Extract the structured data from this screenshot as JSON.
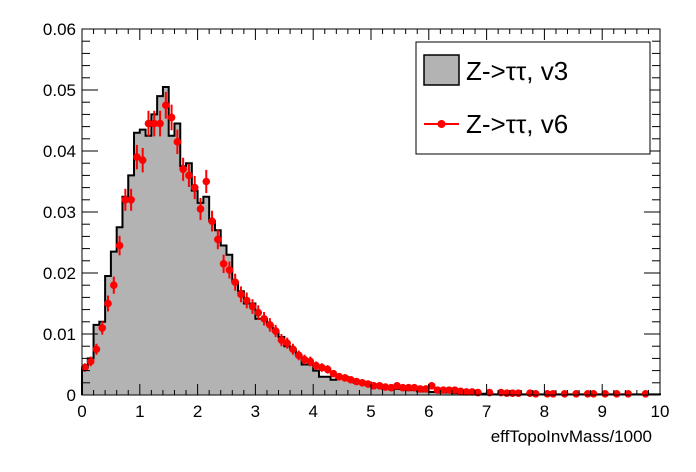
{
  "chart_data": {
    "type": "histogram",
    "xlabel": "effTopoInvMass/1000",
    "ylabel": "",
    "xlim": [
      0,
      10
    ],
    "ylim": [
      0,
      0.06
    ],
    "xticks": [
      "0",
      "1",
      "2",
      "3",
      "4",
      "5",
      "6",
      "7",
      "8",
      "9",
      "10"
    ],
    "yticks": [
      "0",
      "0.01",
      "0.02",
      "0.03",
      "0.04",
      "0.05",
      "0.06"
    ],
    "grid": false,
    "legend_position": "top-right",
    "bin_width": 0.1,
    "series": [
      {
        "name": "Z->ττ, v3",
        "style": "filled-histogram",
        "color": "#b3b3b3",
        "edge_color": "#000000",
        "x": [
          0.0,
          0.1,
          0.2,
          0.3,
          0.4,
          0.5,
          0.6,
          0.7,
          0.8,
          0.9,
          1.0,
          1.1,
          1.2,
          1.3,
          1.4,
          1.5,
          1.6,
          1.7,
          1.8,
          1.9,
          2.0,
          2.1,
          2.2,
          2.3,
          2.4,
          2.5,
          2.6,
          2.7,
          2.8,
          2.9,
          3.0,
          3.1,
          3.2,
          3.3,
          3.4,
          3.5,
          3.6,
          3.7,
          3.8,
          3.9,
          4.0,
          4.1,
          4.2,
          4.3,
          4.4,
          4.5,
          4.6,
          4.7,
          4.8,
          4.9,
          5.0,
          5.1,
          5.2,
          5.3,
          5.4,
          5.5,
          5.6,
          5.7,
          5.8,
          5.9,
          6.0,
          6.1,
          6.2,
          6.3,
          6.4,
          6.5,
          6.6,
          6.7,
          6.8,
          6.9,
          7.0,
          7.1,
          7.2,
          7.3,
          7.4,
          7.5,
          7.6,
          7.7,
          7.8,
          7.9,
          8.0,
          8.1,
          8.2,
          8.3,
          8.4,
          8.5,
          8.6,
          8.7,
          8.8,
          8.9,
          9.0,
          9.1,
          9.2,
          9.3,
          9.4,
          9.5,
          9.6,
          9.7,
          9.8,
          9.9
        ],
        "values": [
          0.0045,
          0.006,
          0.0115,
          0.012,
          0.0195,
          0.0235,
          0.0275,
          0.0325,
          0.036,
          0.043,
          0.0435,
          0.0425,
          0.046,
          0.049,
          0.0505,
          0.0425,
          0.0445,
          0.0375,
          0.038,
          0.0335,
          0.0315,
          0.0325,
          0.0285,
          0.027,
          0.0245,
          0.023,
          0.0185,
          0.017,
          0.015,
          0.015,
          0.0125,
          0.0125,
          0.0115,
          0.0105,
          0.0095,
          0.008,
          0.0075,
          0.0065,
          0.005,
          0.005,
          0.004,
          0.003,
          0.003,
          0.0025,
          0.003,
          0.003,
          0.0025,
          0.002,
          0.002,
          0.002,
          0.0015,
          0.0015,
          0.001,
          0.001,
          0.001,
          0.001,
          0.0008,
          0.0008,
          0.0006,
          0.0006,
          0.0005,
          0.0005,
          0.0004,
          0.0004,
          0.0003,
          0.0003,
          0.0003,
          0.0002,
          0.0002,
          0.0002,
          0.0002,
          0.0001,
          0.0001,
          0.0001,
          0.0001,
          0.0001,
          0.0001,
          0.0001,
          0.0001,
          0.0001,
          0.0001,
          0.0001,
          0.0001,
          0.0001,
          0.0001,
          0.0001,
          0.0001,
          0.0001,
          0.0001,
          0.0001,
          0.0001,
          0.0001,
          0.0001,
          0.0001,
          0.0001,
          0.0001,
          0.0001,
          0.0001,
          0.0001,
          0.0001
        ]
      },
      {
        "name": "Z->ττ, v6",
        "style": "points-with-errors",
        "color": "#ff0000",
        "x": [
          0.05,
          0.15,
          0.25,
          0.35,
          0.45,
          0.55,
          0.65,
          0.75,
          0.85,
          0.95,
          1.05,
          1.15,
          1.25,
          1.35,
          1.45,
          1.55,
          1.65,
          1.75,
          1.85,
          1.95,
          2.05,
          2.15,
          2.25,
          2.35,
          2.45,
          2.55,
          2.65,
          2.75,
          2.85,
          2.95,
          3.05,
          3.15,
          3.25,
          3.35,
          3.45,
          3.55,
          3.65,
          3.75,
          3.85,
          3.95,
          4.05,
          4.15,
          4.25,
          4.35,
          4.45,
          4.55,
          4.65,
          4.75,
          4.85,
          4.95,
          5.05,
          5.15,
          5.25,
          5.35,
          5.45,
          5.55,
          5.65,
          5.75,
          5.85,
          5.95,
          6.05,
          6.15,
          6.25,
          6.35,
          6.45,
          6.55,
          6.65,
          6.75,
          6.85,
          7.05,
          7.25,
          7.35,
          7.45,
          7.55,
          7.75,
          7.85,
          8.05,
          8.15,
          8.35,
          8.55,
          8.75,
          8.85,
          9.05,
          9.25,
          9.45,
          9.75
        ],
        "values": [
          0.0045,
          0.0055,
          0.0075,
          0.011,
          0.015,
          0.018,
          0.0245,
          0.032,
          0.032,
          0.039,
          0.0385,
          0.0445,
          0.0445,
          0.0445,
          0.0475,
          0.0455,
          0.0415,
          0.037,
          0.036,
          0.034,
          0.0305,
          0.035,
          0.0285,
          0.0255,
          0.0215,
          0.0205,
          0.0185,
          0.0165,
          0.0155,
          0.0145,
          0.0135,
          0.0125,
          0.0115,
          0.0105,
          0.009,
          0.0085,
          0.0075,
          0.0065,
          0.0058,
          0.0055,
          0.0048,
          0.0045,
          0.0042,
          0.0035,
          0.003,
          0.0028,
          0.0025,
          0.0022,
          0.002,
          0.0018,
          0.0015,
          0.0015,
          0.0013,
          0.0012,
          0.0015,
          0.0012,
          0.0012,
          0.0012,
          0.001,
          0.001,
          0.0015,
          0.0008,
          0.0008,
          0.0008,
          0.0008,
          0.0006,
          0.0005,
          0.0005,
          0.0004,
          0.0004,
          0.0004,
          0.0003,
          0.0003,
          0.0003,
          0.0003,
          0.0002,
          0.0002,
          0.0002,
          0.0002,
          0.0002,
          0.0002,
          0.0002,
          0.0002,
          0.0002,
          0.0002,
          0.0002
        ],
        "errors": [
          0.0007,
          0.0008,
          0.0009,
          0.0011,
          0.0013,
          0.0014,
          0.0016,
          0.0018,
          0.0018,
          0.002,
          0.002,
          0.0021,
          0.0021,
          0.0021,
          0.0022,
          0.0021,
          0.002,
          0.0019,
          0.0019,
          0.0019,
          0.0018,
          0.0019,
          0.0017,
          0.0016,
          0.0015,
          0.0014,
          0.0014,
          0.0013,
          0.0013,
          0.0012,
          0.0012,
          0.0011,
          0.0011,
          0.001,
          0.001,
          0.0009,
          0.0009,
          0.0008,
          0.0008,
          0.0008,
          0.0007,
          0.0007,
          0.0007,
          0.0006,
          0.0006,
          0.0006,
          0.0005,
          0.0005,
          0.0005,
          0.0005,
          0.0004,
          0.0004,
          0.0004,
          0.0004,
          0.0004,
          0.0004,
          0.0004,
          0.0004,
          0.0003,
          0.0003,
          0.0004,
          0.0003,
          0.0003,
          0.0003,
          0.0003,
          0.0003,
          0.0002,
          0.0002,
          0.0002,
          0.0002,
          0.0002,
          0.0002,
          0.0002,
          0.0002,
          0.0002,
          0.0002,
          0.0002,
          0.0002,
          0.0002,
          0.0002,
          0.0002,
          0.0002,
          0.0002,
          0.0002,
          0.0002,
          0.0002
        ]
      }
    ]
  }
}
